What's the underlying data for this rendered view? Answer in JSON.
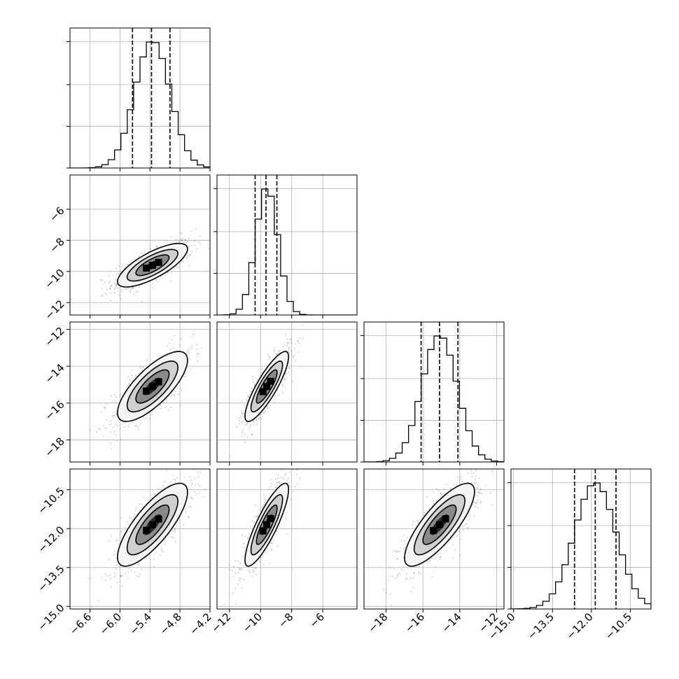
{
  "chart_data": {
    "type": "corner",
    "grid": true,
    "parameters": [
      {
        "range": [
          -7.0,
          -4.2
        ],
        "ticks": [
          -6.6,
          -6.0,
          -5.4,
          -4.8,
          -4.2
        ],
        "labels": [
          "−6.6",
          "−6.0",
          "−5.4",
          "−4.8",
          "−4.2"
        ],
        "mean": -5.35,
        "sd": 0.35,
        "quantiles": [
          -5.75,
          -5.37,
          -5.0
        ]
      },
      {
        "range": [
          -12.8,
          -3.8
        ],
        "ticks": [
          -12,
          -10,
          -8,
          -6
        ],
        "labels": [
          "−12",
          "−10",
          "−8",
          "−6"
        ],
        "mean": -9.6,
        "sd": 0.7,
        "quantiles": [
          -10.35,
          -9.65,
          -8.95
        ]
      },
      {
        "range": [
          -19.2,
          -11.6
        ],
        "ticks": [
          -18,
          -16,
          -14,
          -12
        ],
        "labels": [
          "−18",
          "−16",
          "−14",
          "−12"
        ],
        "mean": -15.1,
        "sd": 0.95,
        "quantiles": [
          -16.1,
          -15.1,
          -14.1
        ]
      },
      {
        "range": [
          -15.1,
          -9.7
        ],
        "ticks": [
          -15.0,
          -13.5,
          -12.0,
          -10.5
        ],
        "labels": [
          "−15.0",
          "−13.5",
          "−12.0",
          "−10.5"
        ],
        "mean": -11.85,
        "sd": 0.8,
        "quantiles": [
          -12.65,
          -11.85,
          -11.05
        ]
      }
    ],
    "row_axis_labels": {
      "1": [
        "−6",
        "−8",
        "−10",
        "−12"
      ],
      "2": [
        "−12",
        "−14",
        "−16",
        "−18"
      ],
      "3": [
        "−10.5",
        "−12.0",
        "−13.5",
        "−15.0"
      ]
    },
    "correlations": {
      "1-0": 0.75,
      "2-0": 0.75,
      "2-1": 0.85,
      "3-0": 0.78,
      "3-1": 0.85,
      "3-2": 0.8
    }
  }
}
